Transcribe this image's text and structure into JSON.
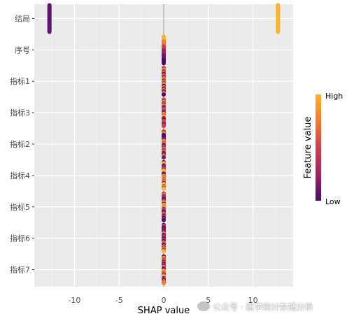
{
  "chart_data": {
    "type": "scatter",
    "subtype": "shap-beeswarm",
    "xlabel": "SHAP value",
    "ylabel": "",
    "xlim": [
      -14.5,
      14.5
    ],
    "x_ticks": [
      -10,
      -5,
      0,
      5,
      10
    ],
    "grid": true,
    "features": [
      {
        "name": "结局",
        "shap_clusters": [
          {
            "x": -12.8,
            "feature_value": "low"
          },
          {
            "x": 12.8,
            "feature_value": "high"
          }
        ]
      },
      {
        "name": "序号",
        "shap_clusters": [
          {
            "x": 0,
            "feature_value": "mixed"
          }
        ]
      },
      {
        "name": "指标1",
        "shap_clusters": [
          {
            "x": 0,
            "feature_value": "mixed"
          }
        ]
      },
      {
        "name": "指标3",
        "shap_clusters": [
          {
            "x": 0,
            "feature_value": "mixed"
          }
        ]
      },
      {
        "name": "指标2",
        "shap_clusters": [
          {
            "x": 0,
            "feature_value": "mixed"
          }
        ]
      },
      {
        "name": "指标4",
        "shap_clusters": [
          {
            "x": 0,
            "feature_value": "mixed"
          }
        ]
      },
      {
        "name": "指标5",
        "shap_clusters": [
          {
            "x": 0,
            "feature_value": "mixed"
          }
        ]
      },
      {
        "name": "指标6",
        "shap_clusters": [
          {
            "x": 0,
            "feature_value": "mixed"
          }
        ]
      },
      {
        "name": "指标7",
        "shap_clusters": [
          {
            "x": 0,
            "feature_value": "mixed"
          }
        ]
      }
    ],
    "legend": {
      "title": "Feature value",
      "high_label": "High",
      "low_label": "Low",
      "position": "right",
      "colors": [
        "#fcb22b",
        "#f47a2c",
        "#cf3e4f",
        "#a0245d",
        "#6a176e",
        "#4a0c6b"
      ]
    },
    "colors": {
      "panel": "#ebebeb",
      "grid": "#ffffff",
      "zero_line": "#999999"
    }
  },
  "watermark": {
    "text": "公众号 · 医学统计数据分析"
  }
}
